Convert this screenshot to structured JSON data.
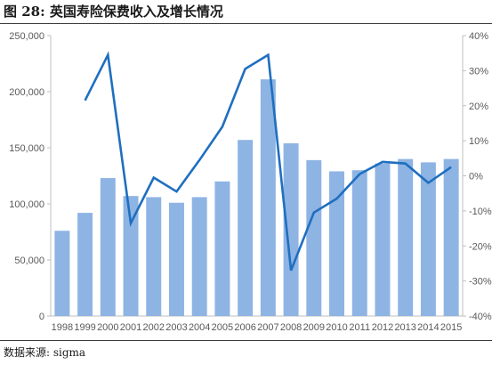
{
  "header": {
    "title": "图 28: 英国寿险保费收入及增长情况"
  },
  "footer": {
    "source": "数据来源: sigma"
  },
  "colors": {
    "bar": "#8EB4E3",
    "line": "#1F6FC0",
    "grid": "#d9d9d9",
    "axis": "#bfbfbf"
  },
  "chart_data": {
    "type": "bar+line",
    "title": "英国寿险保费收入及增长情况",
    "xlabel": "",
    "ylabel": "",
    "categories": [
      "1998",
      "1999",
      "2000",
      "2001",
      "2002",
      "2003",
      "2004",
      "2005",
      "2006",
      "2007",
      "2008",
      "2009",
      "2010",
      "2011",
      "2012",
      "2013",
      "2014",
      "2015"
    ],
    "series": [
      {
        "axis": "left",
        "type": "bar",
        "values": [
          76000,
          92000,
          123000,
          107000,
          106000,
          101000,
          106000,
          120000,
          157000,
          211000,
          154000,
          139000,
          129000,
          130000,
          136000,
          140000,
          137000,
          140000
        ]
      },
      {
        "axis": "right",
        "type": "line",
        "values": [
          null,
          21.5,
          34.5,
          -13.5,
          -0.5,
          -4.5,
          4.5,
          14,
          30.5,
          34.5,
          -27,
          -10.5,
          -6.5,
          0.5,
          4,
          3.5,
          -2,
          2.5
        ]
      }
    ],
    "y_left": {
      "min": 0,
      "max": 250000,
      "ticks": [
        "0",
        "50,000",
        "100,000",
        "150,000",
        "200,000",
        "250,000"
      ]
    },
    "y_right": {
      "min": -40,
      "max": 40,
      "ticks": [
        "-40%",
        "-30%",
        "-20%",
        "-10%",
        "0%",
        "10%",
        "20%",
        "30%",
        "40%"
      ]
    },
    "grid": false
  }
}
